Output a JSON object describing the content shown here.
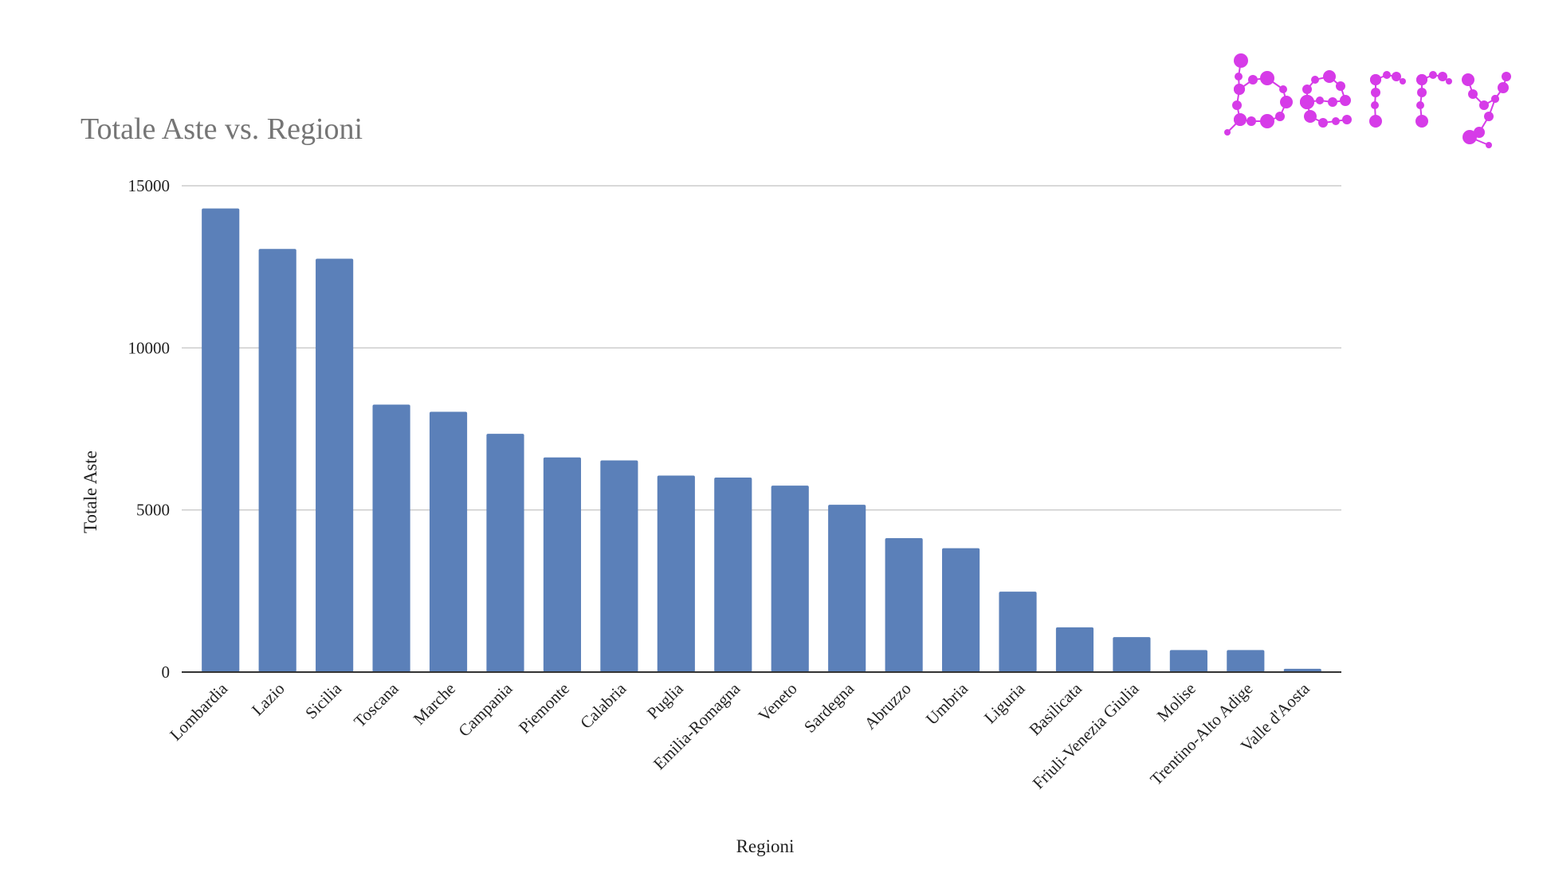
{
  "logo": {
    "text": "berry",
    "color": "#d63be8"
  },
  "chart_data": {
    "type": "bar",
    "title": "Totale Aste vs. Regioni",
    "xlabel": "Regioni",
    "ylabel": "Totale Aste",
    "ylim": [
      0,
      15000
    ],
    "yticks": [
      "0",
      "5000",
      "10000",
      "15000"
    ],
    "grid": true,
    "legend": "none",
    "bar_color": "#5b80b9",
    "categories": [
      "Lombardia",
      "Lazio",
      "Sicilia",
      "Toscana",
      "Marche",
      "Campania",
      "Piemonte",
      "Calabria",
      "Puglia",
      "Emilia-Romagna",
      "Veneto",
      "Sardegna",
      "Abruzzo",
      "Umbria",
      "Liguria",
      "Basilicata",
      "Friuli-Venezia Giulia",
      "Molise",
      "Trentino-Alto Adige",
      "Valle d'Aosta"
    ],
    "values": [
      14300,
      13050,
      12750,
      8250,
      8030,
      7350,
      6620,
      6530,
      6060,
      6000,
      5750,
      5160,
      4130,
      3820,
      2480,
      1380,
      1080,
      680,
      680,
      100
    ]
  }
}
